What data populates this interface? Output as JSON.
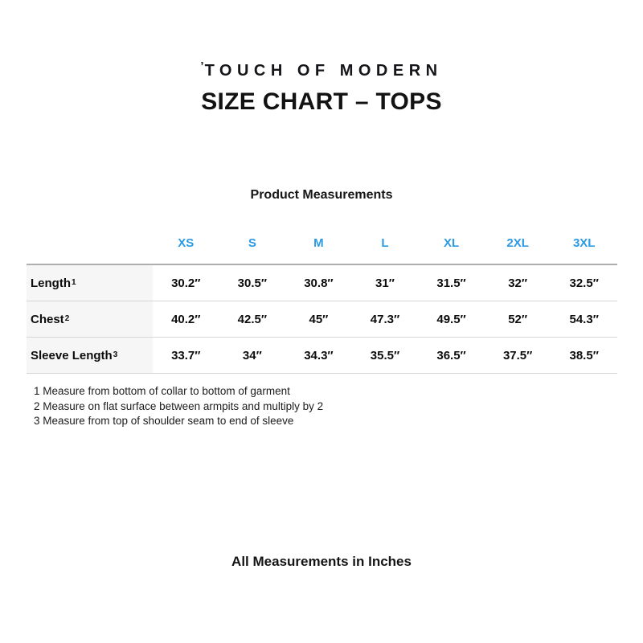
{
  "colors": {
    "accent_blue": "#2b9be4",
    "row_label_background": "#f6f6f6",
    "table_border_gray": "#d6d6d6"
  },
  "logo": {
    "mark": "’",
    "text": "TOUCH OF MODERN"
  },
  "page_title": "SIZE CHART – TOPS",
  "table": {
    "title": "Product Measurements",
    "size_columns": [
      "XS",
      "S",
      "M",
      "L",
      "XL",
      "2XL",
      "3XL"
    ],
    "rows": [
      {
        "label": "Length",
        "footnote_ref": "1",
        "values": [
          "30.2″",
          "30.5″",
          "30.8″",
          "31″",
          "31.5″",
          "32″",
          "32.5″"
        ]
      },
      {
        "label": "Chest",
        "footnote_ref": "2",
        "values": [
          "40.2″",
          "42.5″",
          "45″",
          "47.3″",
          "49.5″",
          "52″",
          "54.3″"
        ]
      },
      {
        "label": "Sleeve Length",
        "footnote_ref": "3",
        "values": [
          "33.7″",
          "34″",
          "34.3″",
          "35.5″",
          "36.5″",
          "37.5″",
          "38.5″"
        ]
      }
    ]
  },
  "footnotes": [
    "1 Measure from bottom of collar to bottom of garment",
    "2 Measure on flat surface between armpits and multiply by 2",
    "3 Measure from top of shoulder seam to end of sleeve"
  ],
  "bottom_note": "All Measurements in Inches"
}
